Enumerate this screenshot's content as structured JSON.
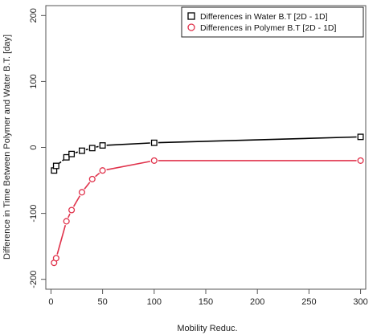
{
  "chart_data": {
    "type": "line",
    "xlabel": "Mobility Reduc.",
    "ylabel": "Difference in Time Between Polymer and Water B.T. [day]",
    "xlim": [
      -5,
      305
    ],
    "ylim": [
      -215,
      215
    ],
    "x_ticks": [
      0,
      50,
      100,
      150,
      200,
      250,
      300
    ],
    "y_ticks": [
      -200,
      -100,
      0,
      100,
      200
    ],
    "grid": false,
    "legend_position": "top-right",
    "series": [
      {
        "name": "Differences in Water B.T [2D - 1D]",
        "color": "#000000",
        "marker": "square",
        "x": [
          3,
          5,
          15,
          20,
          30,
          40,
          50,
          100,
          300
        ],
        "y": [
          -35,
          -28,
          -15,
          -10,
          -5,
          -1,
          3,
          7,
          16
        ]
      },
      {
        "name": "Differences in Polymer B.T [2D - 1D]",
        "color": "#e0324b",
        "marker": "circle",
        "x": [
          3,
          5,
          15,
          20,
          30,
          40,
          50,
          100,
          300
        ],
        "y": [
          -175,
          -168,
          -112,
          -95,
          -68,
          -48,
          -35,
          -20,
          -20
        ]
      }
    ]
  }
}
